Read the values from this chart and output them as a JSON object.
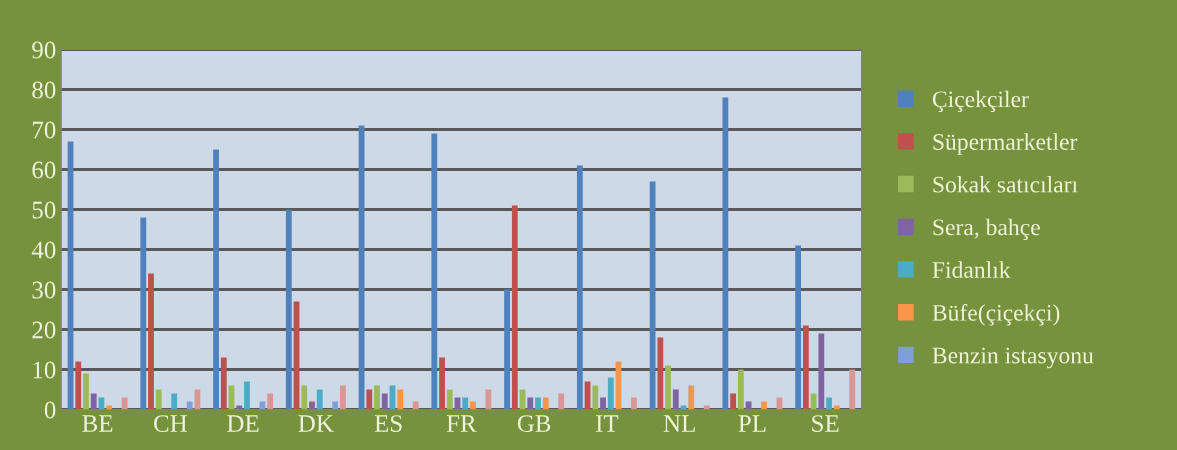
{
  "chart_data": {
    "type": "bar",
    "categories": [
      "BE",
      "CH",
      "DE",
      "DK",
      "ES",
      "FR",
      "GB",
      "IT",
      "NL",
      "PL",
      "SE"
    ],
    "series": [
      {
        "name": "Çiçekçiler",
        "color": "#4f81bd",
        "values": [
          67,
          48,
          65,
          50,
          71,
          69,
          30,
          61,
          57,
          78,
          41
        ]
      },
      {
        "name": "Süpermarketler",
        "color": "#c0504d",
        "values": [
          12,
          34,
          13,
          27,
          5,
          13,
          51,
          7,
          18,
          4,
          21
        ]
      },
      {
        "name": "Sokak satıcıları",
        "color": "#9bbb59",
        "values": [
          9,
          5,
          6,
          6,
          6,
          5,
          5,
          6,
          11,
          10,
          4
        ]
      },
      {
        "name": "Sera, bahçe",
        "color": "#8064a2",
        "values": [
          4,
          0,
          1,
          2,
          4,
          3,
          3,
          3,
          5,
          2,
          19
        ]
      },
      {
        "name": "Fidanlık",
        "color": "#4bacc6",
        "values": [
          3,
          4,
          7,
          5,
          6,
          3,
          3,
          8,
          1,
          0,
          3
        ]
      },
      {
        "name": "Büfe(çiçekçi)",
        "color": "#f79646",
        "values": [
          1,
          0,
          0,
          0,
          5,
          2,
          3,
          12,
          6,
          2,
          1
        ]
      },
      {
        "name": "Benzin istasyonu",
        "color": "#7f9fd6",
        "values": [
          0,
          2,
          2,
          2,
          0,
          0,
          0,
          0,
          0,
          0,
          0
        ]
      },
      {
        "color": "#d99694",
        "values": [
          3,
          5,
          4,
          6,
          2,
          5,
          4,
          3,
          1,
          3,
          10
        ]
      }
    ],
    "ylim": [
      0,
      90
    ],
    "yticks": [
      0,
      10,
      20,
      30,
      40,
      50,
      60,
      70,
      80,
      90
    ],
    "grid": "y",
    "legend": "right"
  }
}
